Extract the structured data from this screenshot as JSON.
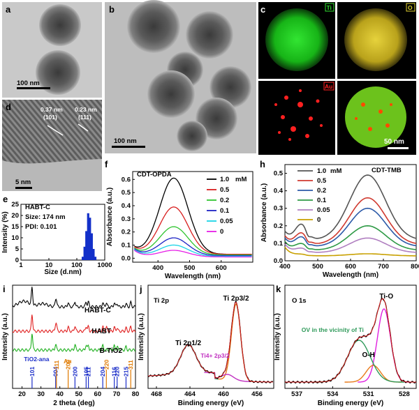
{
  "panels": {
    "a": {
      "label": "a",
      "scale": "100 nm"
    },
    "b": {
      "label": "b",
      "scale": "100 nm"
    },
    "c": {
      "label": "c",
      "scale": "50 nm",
      "maps": [
        "Ti",
        "O",
        "Au",
        ""
      ]
    },
    "d": {
      "label": "d",
      "scale": "5 nm",
      "fringe1": "0.37 nm",
      "plane1": "(101)",
      "fringe2": "0.23 nm",
      "plane2": "(111)"
    },
    "e": {
      "label": "e",
      "lines": [
        "HABT-C",
        "Size: 174 nm",
        "PDI: 0.101"
      ]
    },
    "f": {
      "label": "f",
      "title": "CDT-OPDA"
    },
    "h": {
      "label": "h",
      "title": "CDT-TMB"
    },
    "i": {
      "label": "i"
    },
    "j": {
      "label": "j",
      "title": "Ti 2p"
    },
    "k": {
      "label": "k",
      "title": "O 1s"
    }
  },
  "chart_data": [
    {
      "id": "e",
      "type": "bar",
      "xlabel": "Size (d.nm)",
      "ylabel": "Intensity (%)",
      "x_scale": "log",
      "xlim": [
        1,
        1000
      ],
      "ylim": [
        0,
        25
      ],
      "x_ticks": [
        "1",
        "10",
        "100",
        "1000"
      ],
      "y_ticks": [
        "0",
        "5",
        "10",
        "15",
        "20",
        "25"
      ],
      "bins": [
        164,
        190,
        220,
        255,
        295,
        342,
        396,
        459
      ],
      "values": [
        1.5,
        6,
        13,
        21,
        19,
        12,
        5,
        1.5
      ],
      "color": "#1330c9"
    },
    {
      "id": "f",
      "type": "line",
      "xlabel": "Wavelength (nm)",
      "ylabel": "Absorbance (a.u.)",
      "xlim": [
        320,
        700
      ],
      "ylim": [
        -0.03,
        0.66
      ],
      "x_ticks": [
        "400",
        "500",
        "600"
      ],
      "y_ticks": [
        "0.0",
        "0.1",
        "0.2",
        "0.3",
        "0.4",
        "0.5",
        "0.6"
      ],
      "legend_unit": "mM",
      "series": [
        {
          "name": "1.0",
          "color": "#000000",
          "peak": 0.61,
          "base": 0.03
        },
        {
          "name": "0.5",
          "color": "#d81e1e",
          "peak": 0.39,
          "base": 0.03
        },
        {
          "name": "0.2",
          "color": "#2fc42f",
          "peak": 0.24,
          "base": 0.025
        },
        {
          "name": "0.1",
          "color": "#1c23c4",
          "peak": 0.155,
          "base": 0.02
        },
        {
          "name": "0.05",
          "color": "#19d3e6",
          "peak": 0.1,
          "base": 0.015
        },
        {
          "name": "0",
          "color": "#e61ee6",
          "peak": 0.06,
          "base": 0.01
        }
      ]
    },
    {
      "id": "h",
      "type": "line",
      "xlabel": "Wavelength (nm)",
      "ylabel": "Absorbance (a.u.)",
      "xlim": [
        400,
        800
      ],
      "ylim": [
        0,
        0.55
      ],
      "x_ticks": [
        "400",
        "500",
        "600",
        "700",
        "800"
      ],
      "y_ticks": [
        "0.0",
        "0.1",
        "0.2",
        "0.3",
        "0.4",
        "0.5"
      ],
      "legend_unit": "mM",
      "series": [
        {
          "name": "1.0",
          "color": "#555555",
          "peak": 0.49
        },
        {
          "name": "0.5",
          "color": "#d03a30",
          "peak": 0.36
        },
        {
          "name": "0.2",
          "color": "#2c5aa8",
          "peak": 0.3
        },
        {
          "name": "0.1",
          "color": "#2e9a45",
          "peak": 0.2
        },
        {
          "name": "0.05",
          "color": "#b07fc0",
          "peak": 0.13
        },
        {
          "name": "0",
          "color": "#c8a000",
          "peak": 0.04
        }
      ]
    },
    {
      "id": "i",
      "type": "line",
      "xlabel": "2 theta (deg)",
      "ylabel": "Intensity (a.u.)",
      "xlim": [
        15,
        80
      ],
      "x_ticks": [
        "20",
        "30",
        "40",
        "50",
        "60",
        "70",
        "80"
      ],
      "series": [
        {
          "name": "HABT-C",
          "color": "#000000"
        },
        {
          "name": "HABT",
          "color": "#e02020"
        },
        {
          "name": "B-TiO2",
          "color": "#20b020"
        }
      ],
      "reference_labels": {
        "tio2": "TiO2-ana",
        "au": "Au"
      },
      "tio2_peaks": [
        {
          "pos": 25.3,
          "label": "101"
        },
        {
          "pos": 37.8,
          "label": "004"
        },
        {
          "pos": 48.0,
          "label": "200"
        },
        {
          "pos": 53.9,
          "label": "105"
        },
        {
          "pos": 55.1,
          "label": "211"
        },
        {
          "pos": 62.7,
          "label": "204"
        },
        {
          "pos": 68.8,
          "label": "116"
        },
        {
          "pos": 70.3,
          "label": "220"
        },
        {
          "pos": 75.0,
          "label": "215"
        }
      ],
      "au_peaks": [
        {
          "pos": 38.2,
          "label": "111"
        },
        {
          "pos": 44.4,
          "label": "200"
        },
        {
          "pos": 64.6,
          "label": "220"
        },
        {
          "pos": 77.5,
          "label": "311"
        }
      ],
      "peak_label_colors": {
        "tio2": "#1c2fc9",
        "au": "#e07a00"
      }
    },
    {
      "id": "j",
      "type": "line",
      "xlabel": "Binding energy (eV)",
      "ylabel": "Intensity (a.u.)",
      "xlim": [
        469,
        454
      ],
      "x_ticks": [
        "468",
        "464",
        "460",
        "456"
      ],
      "annotations": {
        "ti2p32": "Ti 2p3/2",
        "ti2p12": "Ti 2p1/2",
        "ti4": "Ti4+ 2p3/2"
      }
    },
    {
      "id": "k",
      "type": "line",
      "xlabel": "Binding energy (eV)",
      "ylabel": "Intensity (a.u.)",
      "xlim": [
        538,
        527
      ],
      "x_ticks": [
        "537",
        "534",
        "531",
        "528"
      ],
      "annotations": {
        "tio": "Ti-O",
        "oh": "O-H",
        "ov": "OV in the vicinity of Ti"
      }
    }
  ]
}
